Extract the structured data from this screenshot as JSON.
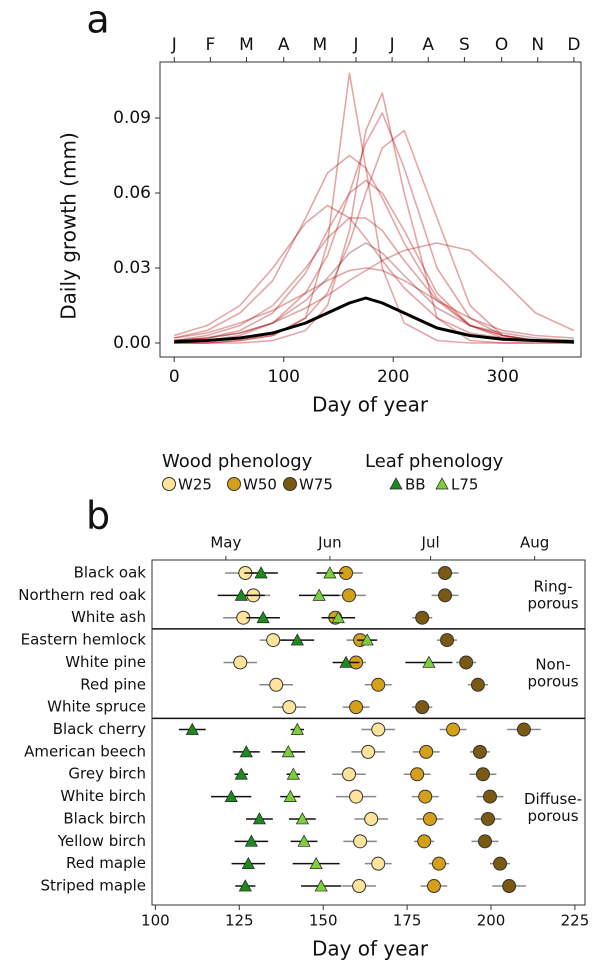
{
  "chart_data": [
    {
      "type": "line",
      "panel": "a",
      "y_label": "Daily growth (mm)",
      "x_label": "Day of year",
      "xlim": [
        -13,
        371.5
      ],
      "ylim": [
        -0.0056,
        0.1124
      ],
      "xticks": [
        0,
        100,
        200,
        300
      ],
      "yticks": [
        {
          "value": 0,
          "label": "0.00"
        },
        0.03,
        0.06,
        0.09
      ],
      "x2ticks": [
        {
          "value": 0,
          "label": "J"
        },
        {
          "value": 33,
          "label": "F"
        },
        {
          "value": 66,
          "label": "M"
        },
        {
          "value": 100,
          "label": "A"
        },
        {
          "value": 133,
          "label": "M"
        },
        {
          "value": 166,
          "label": "J"
        },
        {
          "value": 199,
          "label": "J"
        },
        {
          "value": 232,
          "label": "A"
        },
        {
          "value": 265,
          "label": "S"
        },
        {
          "value": 299,
          "label": "O"
        },
        {
          "value": 332,
          "label": "N"
        },
        {
          "value": 365,
          "label": "D"
        }
      ],
      "x": [
        0,
        30,
        60,
        90,
        120,
        140,
        160,
        175,
        190,
        210,
        240,
        270,
        300,
        330,
        365
      ],
      "series": [
        {
          "color": "#b50000",
          "values": [
            0,
            0,
            0.001,
            0.003,
            0.01,
            0.04,
            0.108,
            0.07,
            0.03,
            0.008,
            0.001,
            0,
            0,
            0,
            0
          ]
        },
        {
          "color": "#b50000",
          "values": [
            0,
            0.001,
            0.003,
            0.008,
            0.02,
            0.035,
            0.06,
            0.08,
            0.092,
            0.07,
            0.03,
            0.01,
            0.003,
            0.001,
            0
          ]
        },
        {
          "color": "#b50000",
          "values": [
            0.002,
            0.005,
            0.012,
            0.025,
            0.05,
            0.068,
            0.075,
            0.07,
            0.058,
            0.04,
            0.018,
            0.007,
            0.003,
            0.001,
            0.001
          ]
        },
        {
          "color": "#b50000",
          "values": [
            0,
            0,
            0.001,
            0.003,
            0.01,
            0.02,
            0.04,
            0.06,
            0.078,
            0.085,
            0.05,
            0.015,
            0.003,
            0.001,
            0
          ]
        },
        {
          "color": "#b50000",
          "values": [
            0.001,
            0.002,
            0.004,
            0.008,
            0.014,
            0.019,
            0.025,
            0.029,
            0.033,
            0.037,
            0.04,
            0.037,
            0.025,
            0.012,
            0.005
          ]
        },
        {
          "color": "#b50000",
          "values": [
            0.001,
            0.002,
            0.005,
            0.012,
            0.028,
            0.045,
            0.06,
            0.065,
            0.06,
            0.045,
            0.02,
            0.007,
            0.002,
            0.001,
            0
          ]
        },
        {
          "color": "#b50000",
          "values": [
            0.003,
            0.007,
            0.015,
            0.03,
            0.048,
            0.055,
            0.05,
            0.042,
            0.033,
            0.022,
            0.01,
            0.004,
            0.002,
            0.001,
            0.001
          ]
        },
        {
          "color": "#b50000",
          "values": [
            0.001,
            0.003,
            0.007,
            0.015,
            0.03,
            0.042,
            0.05,
            0.05,
            0.045,
            0.033,
            0.017,
            0.007,
            0.003,
            0.001,
            0
          ]
        },
        {
          "color": "#b50000",
          "values": [
            0.002,
            0.004,
            0.008,
            0.013,
            0.02,
            0.025,
            0.029,
            0.03,
            0.029,
            0.025,
            0.017,
            0.01,
            0.005,
            0.003,
            0.002
          ]
        },
        {
          "color": "#b50000",
          "values": [
            0,
            0,
            0,
            0.001,
            0.005,
            0.015,
            0.045,
            0.085,
            0.1,
            0.06,
            0.01,
            0.001,
            0,
            0,
            0
          ]
        },
        {
          "color": "#7a1010",
          "values": [
            0.001,
            0.002,
            0.004,
            0.008,
            0.017,
            0.026,
            0.036,
            0.04,
            0.036,
            0.027,
            0.014,
            0.007,
            0.004,
            0.002,
            0.001
          ]
        },
        {
          "color": "#000000",
          "values": [
            0.0005,
            0.001,
            0.002,
            0.004,
            0.008,
            0.012,
            0.016,
            0.018,
            0.016,
            0.012,
            0.006,
            0.003,
            0.0015,
            0.001,
            0.0005
          ]
        }
      ]
    },
    {
      "type": "dot",
      "panel": "b",
      "x_label": "Day of year",
      "xlim": [
        99,
        228
      ],
      "xticks": [
        100,
        125,
        150,
        175,
        200,
        225
      ],
      "x2ticks": [
        {
          "value": 121,
          "label": "May"
        },
        {
          "value": 152,
          "label": "Jun"
        },
        {
          "value": 182,
          "label": "Jul"
        },
        {
          "value": 213,
          "label": "Aug"
        }
      ],
      "groups": [
        {
          "label": [
            "Ring-",
            "porous"
          ],
          "categories": [
            "Black oak",
            "Northern red oak",
            "White ash"
          ]
        },
        {
          "label": [
            "Non-",
            "porous"
          ],
          "categories": [
            "Eastern hemlock",
            "White pine",
            "Red pine",
            "White spruce"
          ]
        },
        {
          "label": [
            "Diffuse-",
            "porous"
          ],
          "categories": [
            "Black cherry",
            "American beech",
            "Grey birch",
            "White birch",
            "Black birch",
            "Yellow birch",
            "Red maple",
            "Striped maple"
          ]
        }
      ],
      "series_groups": [
        {
          "title": "Wood phenology",
          "marker": "circle",
          "series": [
            {
              "name": "W25",
              "color": "#fde49a",
              "values": [
                126.8,
                129.2,
                126.2,
                135.1,
                125.3,
                136,
                139.9,
                166.4,
                163.4,
                157.7,
                159.8,
                164.3,
                161,
                166.4,
                160.7
              ],
              "errors": [
                6,
                5,
                6,
                4,
                5,
                5,
                5,
                5,
                5,
                5,
                6,
                5,
                5,
                4,
                5
              ]
            },
            {
              "name": "W50",
              "color": "#d4a017",
              "values": [
                156.8,
                157.7,
                153.6,
                161,
                159.8,
                166.4,
                159.8,
                188.7,
                180.7,
                178,
                180.4,
                181.8,
                180.1,
                184.5,
                183
              ],
              "errors": [
                5,
                5,
                4,
                4,
                3,
                4,
                4,
                4,
                4,
                4,
                4,
                4,
                3,
                3,
                4
              ]
            },
            {
              "name": "W75",
              "color": "#7a5a12",
              "values": [
                186.3,
                186.3,
                179.5,
                186.9,
                192.6,
                196.1,
                179.5,
                209.8,
                196.7,
                197.6,
                199.7,
                199.1,
                198.2,
                202.7,
                205.4
              ],
              "errors": [
                4,
                4,
                3,
                3,
                3,
                3,
                3,
                5,
                3,
                4,
                4,
                4,
                4,
                3,
                5
              ]
            }
          ]
        },
        {
          "title": "Leaf phenology",
          "marker": "triangle",
          "series": [
            {
              "name": "BB",
              "color": "#1e8a1e",
              "values": [
                131.5,
                125.6,
                132.1,
                142.3,
                156.8,
                null,
                null,
                111,
                127.1,
                125.6,
                122.6,
                131,
                128.6,
                127.7,
                126.8
              ],
              "errors": [
                5,
                7,
                5,
                5,
                4,
                null,
                null,
                4,
                4,
                2,
                6,
                4,
                5,
                5,
                3
              ]
            },
            {
              "name": "L75",
              "color": "#7ccf3a",
              "values": [
                152,
                148.8,
                154.5,
                163.1,
                181.5,
                null,
                null,
                142.3,
                139.6,
                141.1,
                140.2,
                143.8,
                144.3,
                147.9,
                149.4
              ],
              "errors": [
                4,
                6,
                5,
                3,
                7,
                null,
                null,
                2,
                5,
                2,
                3,
                4,
                4,
                7,
                6
              ]
            }
          ]
        }
      ]
    }
  ]
}
